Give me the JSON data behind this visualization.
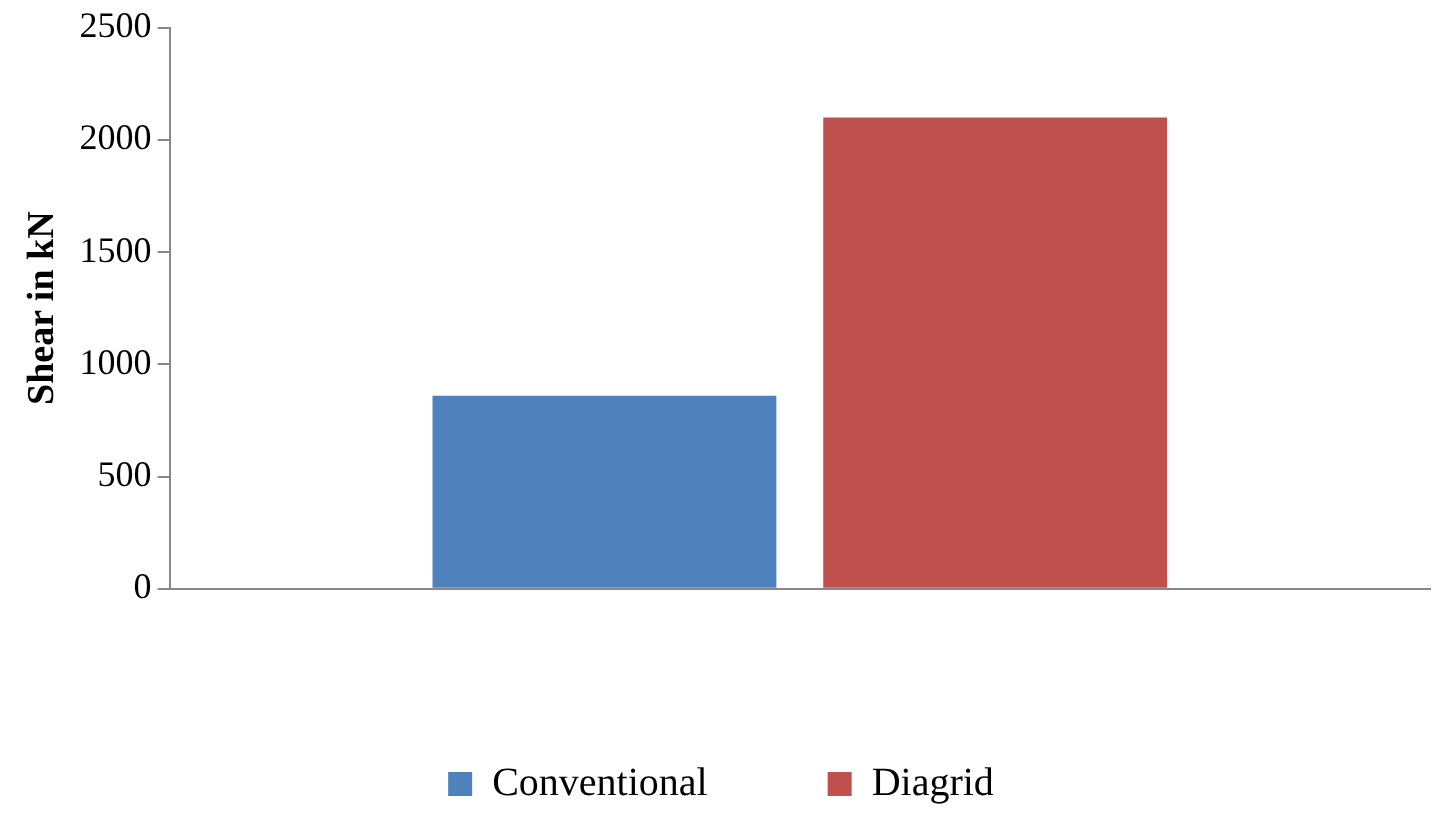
{
  "chart_data": {
    "type": "bar",
    "categories": [
      null
    ],
    "ylabel": "Shear in kN",
    "series": [
      {
        "name": "Conventional",
        "color": "#4f81bd",
        "values": [
          860
        ]
      },
      {
        "name": "Diagrid",
        "color": "#c0504d",
        "values": [
          2100
        ]
      }
    ],
    "ylim": [
      0,
      2500
    ],
    "yticks": [
      0,
      500,
      1000,
      1500,
      2000,
      2500
    ],
    "grid": false,
    "legend": "bottom"
  }
}
